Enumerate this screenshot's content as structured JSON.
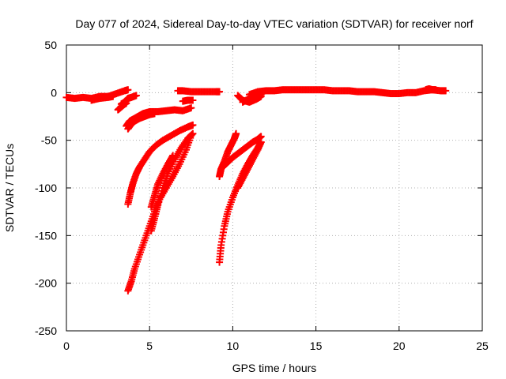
{
  "chart_data": {
    "type": "scatter",
    "title": "Day 077 of 2024, Sidereal Day-to-day VTEC variation (SDTVAR) for receiver norf",
    "xlabel": "GPS time / hours",
    "ylabel": "SDTVAR / TECUs",
    "xlim": [
      0,
      25
    ],
    "ylim": [
      -250,
      50
    ],
    "xticks": [
      "0",
      "5",
      "10",
      "15",
      "20",
      "25"
    ],
    "yticks": [
      "50",
      "0",
      "-50",
      "-100",
      "-150",
      "-200",
      "-250"
    ],
    "xtick_values": [
      0,
      5,
      10,
      15,
      20,
      25
    ],
    "ytick_values": [
      50,
      0,
      -50,
      -100,
      -150,
      -200,
      -250
    ],
    "grid": true,
    "marker": "plus",
    "color": "#ff0000",
    "segments": [
      {
        "x": [
          0.0,
          0.5,
          1.0,
          1.5,
          2.0,
          2.5,
          3.0,
          3.5,
          3.7
        ],
        "y": [
          -5,
          -6,
          -5,
          -6,
          -4,
          -4,
          -1,
          2,
          3
        ]
      },
      {
        "x": [
          1.5,
          2.0,
          2.5,
          2.8
        ],
        "y": [
          -8,
          -6,
          -5,
          -4
        ]
      },
      {
        "x": [
          3.1,
          3.3,
          3.5,
          3.6
        ],
        "y": [
          -18,
          -15,
          -12,
          -11
        ]
      },
      {
        "x": [
          3.3,
          3.5,
          3.7,
          3.9,
          4.2
        ],
        "y": [
          -12,
          -10,
          -6,
          -5,
          -3
        ]
      },
      {
        "x": [
          3.7,
          3.9,
          4.1,
          4.4,
          4.7,
          5.0,
          5.3
        ],
        "y": [
          -38,
          -33,
          -30,
          -27,
          -25,
          -23,
          -22
        ]
      },
      {
        "x": [
          3.6,
          3.8,
          4.0,
          4.3,
          4.6,
          5.0,
          5.5,
          6.0,
          6.5,
          7.0,
          7.5
        ],
        "y": [
          -35,
          -30,
          -28,
          -25,
          -22,
          -20,
          -20,
          -19,
          -18,
          -19,
          -16
        ]
      },
      {
        "x": [
          3.7,
          3.85,
          4.0,
          4.2,
          4.4,
          4.7,
          5.0,
          5.4,
          5.8,
          6.3,
          6.8,
          7.3,
          7.6
        ],
        "y": [
          -117,
          -105,
          -95,
          -85,
          -78,
          -70,
          -62,
          -55,
          -50,
          -45,
          -40,
          -36,
          -34
        ]
      },
      {
        "x": [
          3.7,
          3.9,
          4.1,
          4.4,
          4.7,
          5.0,
          5.3,
          5.6,
          6.0,
          6.4,
          6.8,
          7.2,
          7.5
        ],
        "y": [
          -208,
          -198,
          -185,
          -170,
          -155,
          -140,
          -125,
          -112,
          -100,
          -88,
          -75,
          -60,
          -45
        ]
      },
      {
        "x": [
          5.1,
          5.3,
          5.5,
          5.8,
          6.1,
          6.5,
          6.9,
          7.3,
          7.6
        ],
        "y": [
          -145,
          -132,
          -118,
          -100,
          -85,
          -70,
          -58,
          -48,
          -43
        ]
      },
      {
        "x": [
          5.1,
          5.3,
          5.5,
          5.8,
          6.1,
          6.4
        ],
        "y": [
          -120,
          -108,
          -96,
          -85,
          -75,
          -66
        ]
      },
      {
        "x": [
          6.7,
          7.0,
          7.5,
          8.0,
          8.5,
          9.0,
          9.2
        ],
        "y": [
          2,
          2,
          1,
          1,
          1,
          1,
          1
        ]
      },
      {
        "x": [
          7.0,
          7.3,
          7.6
        ],
        "y": [
          -9,
          -8,
          -8
        ]
      },
      {
        "x": [
          9.2,
          9.3,
          9.5,
          9.7,
          9.9,
          10.1,
          10.2
        ],
        "y": [
          -88,
          -80,
          -72,
          -62,
          -55,
          -48,
          -43
        ]
      },
      {
        "x": [
          9.2,
          9.3,
          9.5,
          9.7,
          10.0,
          10.3,
          10.6,
          10.9,
          11.2,
          11.5,
          11.7
        ],
        "y": [
          -178,
          -160,
          -140,
          -125,
          -110,
          -97,
          -85,
          -75,
          -66,
          -58,
          -52
        ]
      },
      {
        "x": [
          9.4,
          9.7,
          10.0,
          10.3,
          10.6,
          10.9,
          11.2,
          11.5,
          11.7
        ],
        "y": [
          -78,
          -73,
          -68,
          -64,
          -60,
          -56,
          -52,
          -49,
          -46
        ]
      },
      {
        "x": [
          10.3,
          10.6,
          10.9,
          11.2,
          11.5,
          11.7
        ],
        "y": [
          -100,
          -90,
          -80,
          -70,
          -60,
          -52
        ]
      },
      {
        "x": [
          10.3,
          10.6,
          11.0,
          11.4,
          11.7
        ],
        "y": [
          -3,
          -8,
          -10,
          -7,
          -4
        ]
      },
      {
        "x": [
          10.6,
          11.0,
          11.4,
          11.7
        ],
        "y": [
          -10,
          -6,
          -4,
          -2
        ]
      },
      {
        "x": [
          11.0,
          11.5,
          12.0,
          12.5,
          13.0,
          13.5,
          14.0,
          14.5,
          15.0,
          15.5,
          16.0,
          16.5,
          17.0,
          17.5,
          18.0,
          18.5,
          19.0,
          19.5,
          20.0,
          20.5,
          21.0,
          21.5,
          22.0,
          22.5,
          22.8
        ],
        "y": [
          -2,
          1,
          2,
          2,
          3,
          3,
          3,
          3,
          3,
          3,
          2,
          2,
          2,
          1,
          1,
          1,
          0,
          -1,
          -1,
          0,
          0,
          2,
          3,
          2,
          2
        ]
      },
      {
        "x": [
          21.6,
          21.8,
          22.0,
          22.2
        ],
        "y": [
          3,
          4,
          3,
          3
        ]
      }
    ]
  }
}
